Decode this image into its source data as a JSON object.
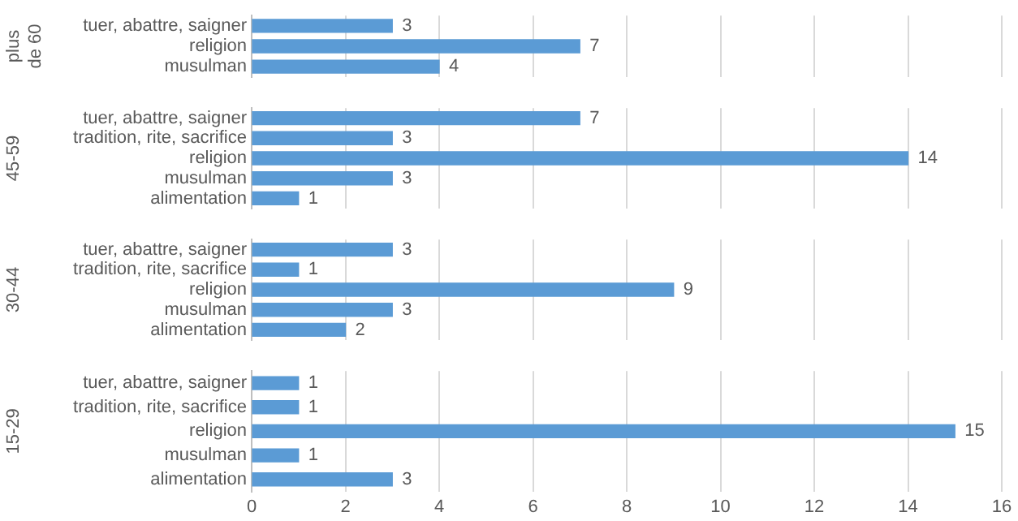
{
  "chart_data": [
    {
      "type": "bar",
      "orientation": "horizontal",
      "ylabel": "plus de 60",
      "categories": [
        "tuer, abattre, saigner",
        "religion",
        "musulman"
      ],
      "values": [
        3,
        7,
        4
      ],
      "color": "#5b9bd5",
      "xlim": [
        0,
        16
      ],
      "xticks": [
        0,
        2,
        4,
        6,
        8,
        10,
        12,
        14,
        16
      ],
      "grid": "x",
      "data_labels": true,
      "legend": false,
      "tick_labels": "y"
    },
    {
      "type": "bar",
      "orientation": "horizontal",
      "ylabel": "45-59",
      "categories": [
        "tuer, abattre, saigner",
        "tradition, rite, sacrifice",
        "religion",
        "musulman",
        "alimentation"
      ],
      "values": [
        7,
        3,
        14,
        3,
        1
      ],
      "color": "#5b9bd5",
      "xlim": [
        0,
        16
      ],
      "xticks": [
        0,
        2,
        4,
        6,
        8,
        10,
        12,
        14,
        16
      ],
      "grid": "x",
      "data_labels": true,
      "legend": false,
      "tick_labels": "y"
    },
    {
      "type": "bar",
      "orientation": "horizontal",
      "ylabel": "30-44",
      "categories": [
        "tuer, abattre, saigner",
        "tradition, rite, sacrifice",
        "religion",
        "musulman",
        "alimentation"
      ],
      "values": [
        3,
        1,
        9,
        3,
        2
      ],
      "color": "#5b9bd5",
      "xlim": [
        0,
        16
      ],
      "xticks": [
        0,
        2,
        4,
        6,
        8,
        10,
        12,
        14,
        16
      ],
      "grid": "x",
      "data_labels": true,
      "legend": false,
      "tick_labels": "y"
    },
    {
      "type": "bar",
      "orientation": "horizontal",
      "ylabel": "15-29",
      "categories": [
        "tuer, abattre, saigner",
        "tradition, rite, sacrifice",
        "religion",
        "musulman",
        "alimentation"
      ],
      "values": [
        1,
        1,
        15,
        1,
        3
      ],
      "color": "#5b9bd5",
      "xlim": [
        0,
        16
      ],
      "xticks": [
        0,
        2,
        4,
        6,
        8,
        10,
        12,
        14,
        16
      ],
      "grid": "x",
      "data_labels": true,
      "legend": false
    }
  ]
}
